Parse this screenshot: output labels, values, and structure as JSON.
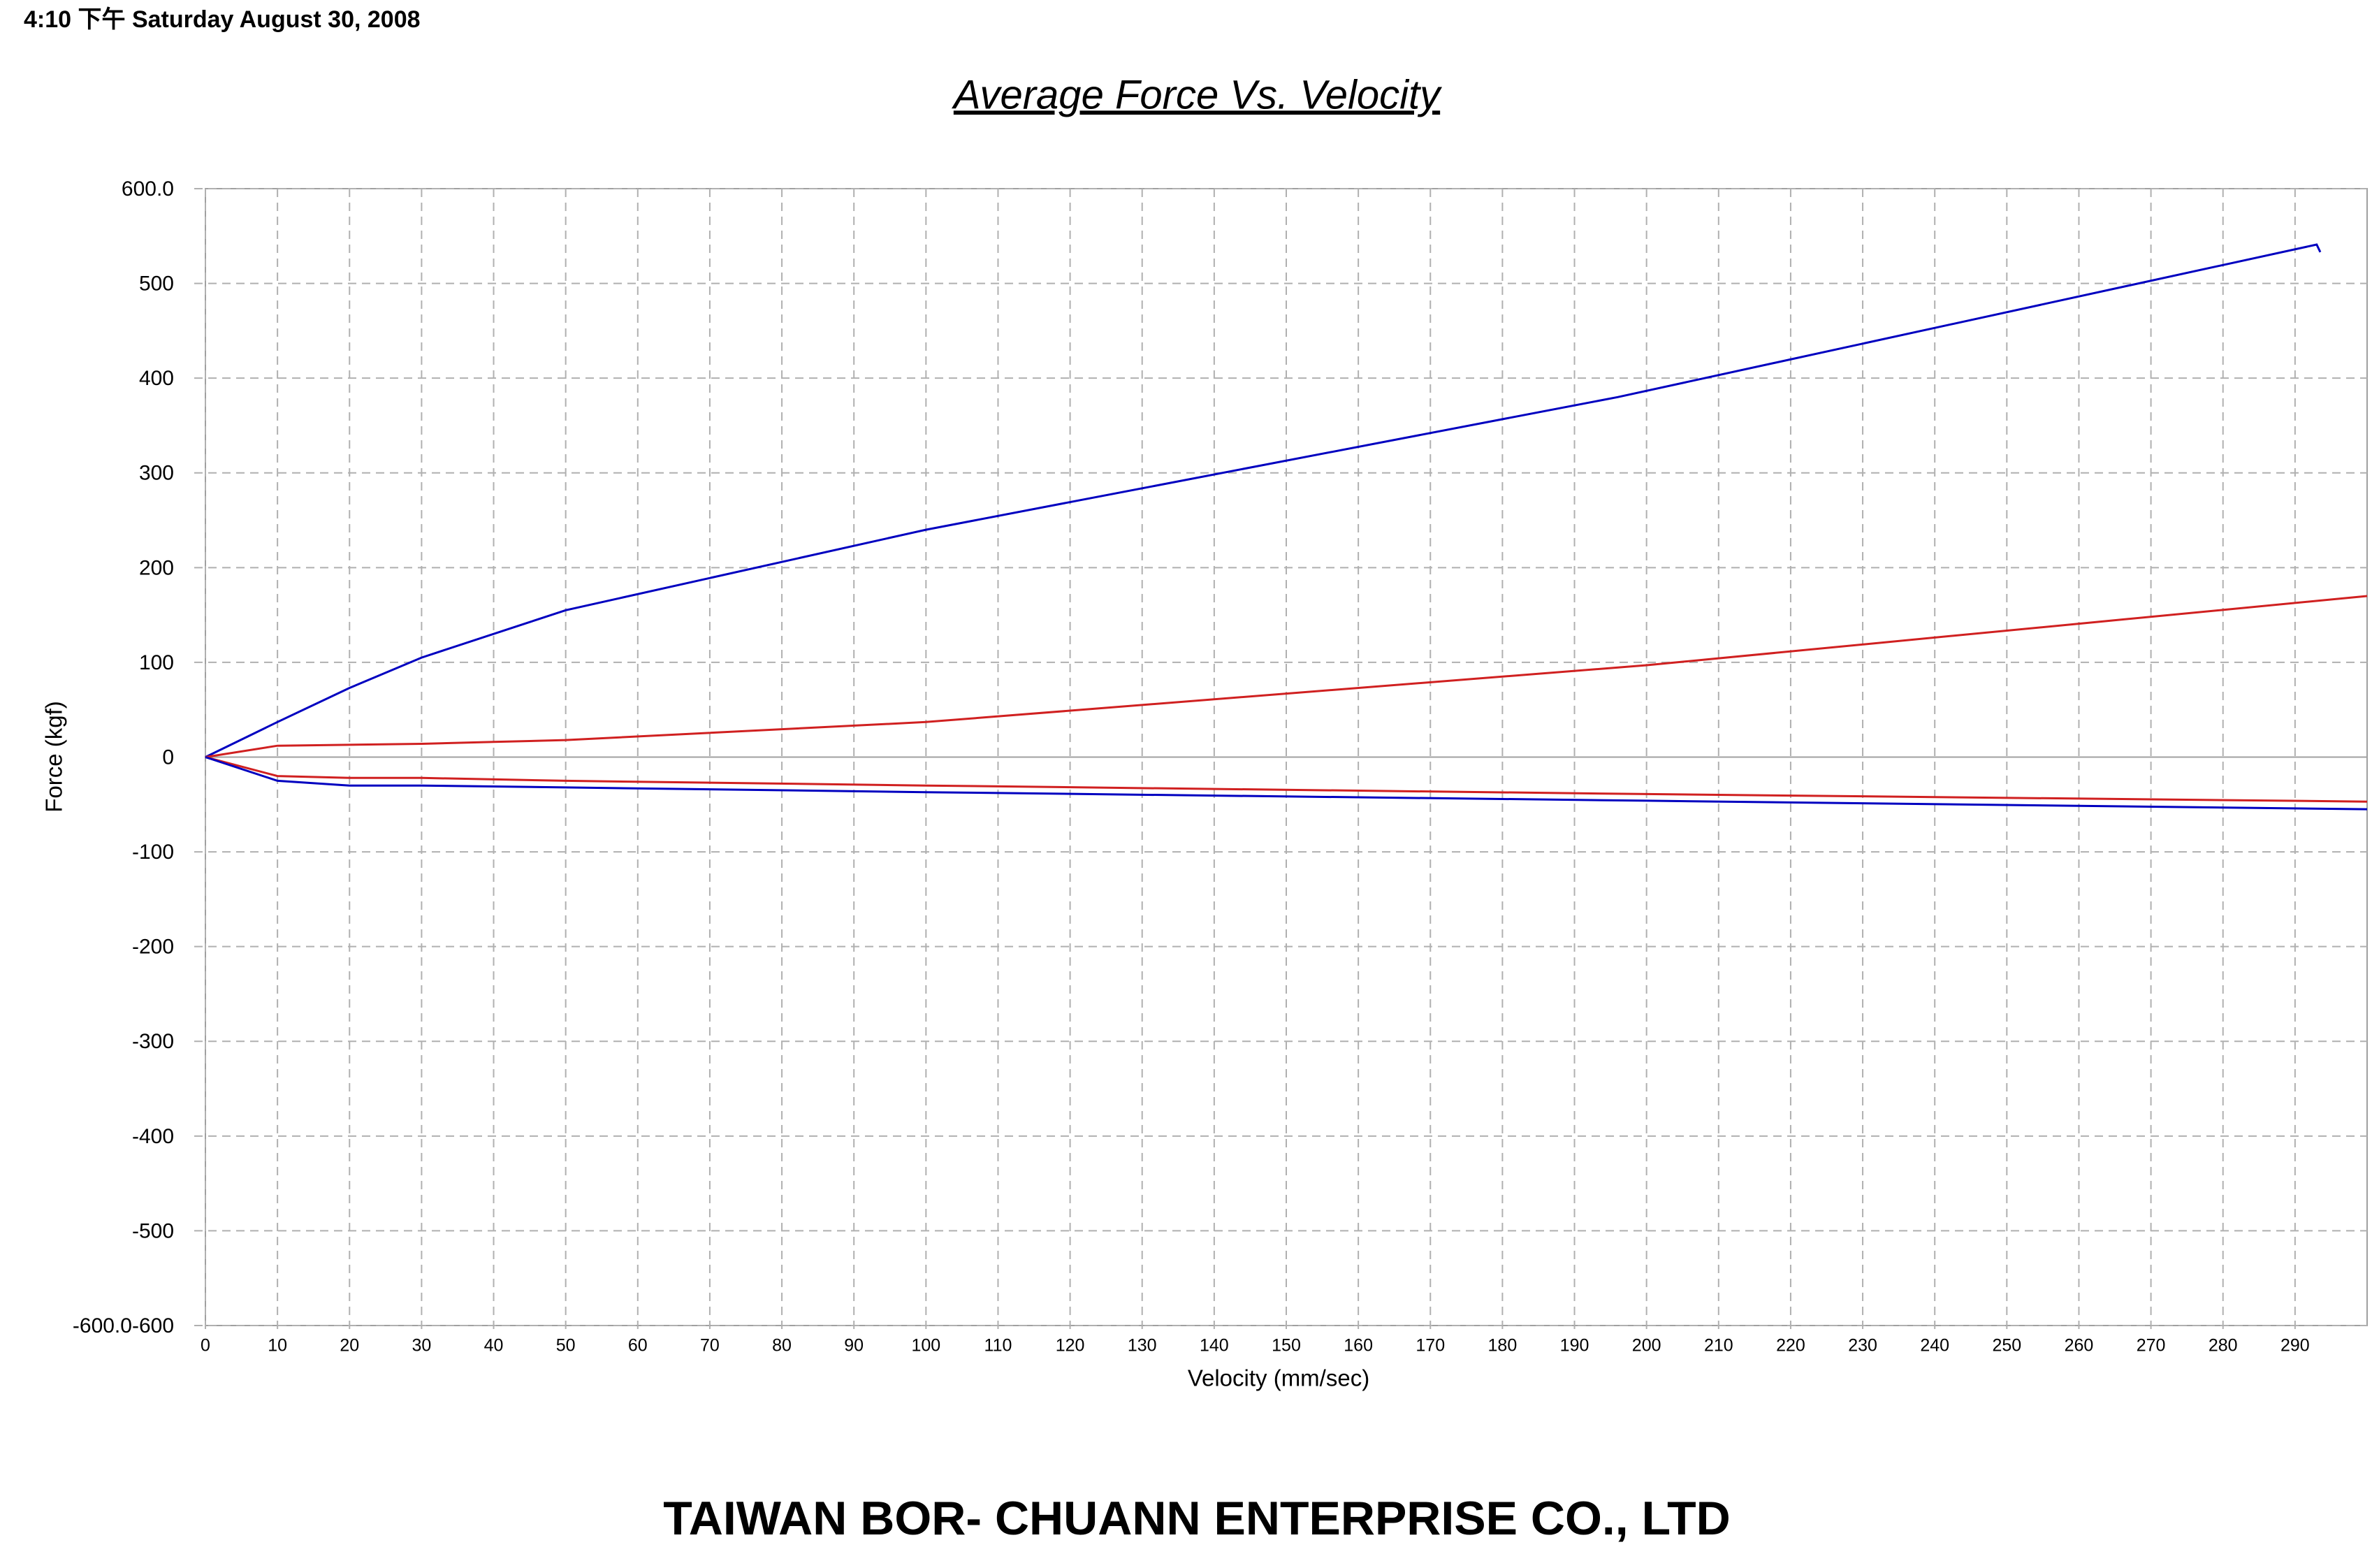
{
  "header": "4:10 下午 Saturday August 30, 2008",
  "footer": "TAIWAN BOR- CHUANN ENTERPRISE CO., LTD",
  "chart_data": {
    "type": "line",
    "title": "Average Force Vs. Velocity",
    "x_label": "Velocity (mm/sec)",
    "y_label": "Force (kgf)",
    "xlim": [
      0,
      300
    ],
    "xticks": [
      0,
      10,
      20,
      30,
      40,
      50,
      60,
      70,
      80,
      90,
      100,
      110,
      120,
      130,
      140,
      150,
      160,
      170,
      180,
      190,
      200,
      210,
      220,
      230,
      240,
      250,
      260,
      270,
      280,
      290
    ],
    "ylim": [
      -600,
      600
    ],
    "yticks": [
      {
        "value": -600,
        "label": "-600.0-600"
      },
      -500,
      -400,
      -300,
      -200,
      -100,
      0,
      100,
      200,
      300,
      400,
      500,
      {
        "value": 600,
        "label": "600.0"
      }
    ],
    "grid": true,
    "series": [
      {
        "color": "#0000c0",
        "x": [
          0,
          10,
          20,
          30,
          50,
          100,
          196,
          293,
          293.5
        ],
        "values": [
          0,
          37,
          73,
          105,
          155,
          240,
          380,
          541,
          533
        ]
      },
      {
        "color": "#d02020",
        "x": [
          0,
          10,
          20,
          30,
          40,
          50,
          100,
          200,
          300
        ],
        "values": [
          0,
          12,
          13,
          14,
          16,
          18,
          37,
          97,
          170
        ]
      },
      {
        "color": "#d02020",
        "x": [
          0,
          10,
          20,
          30,
          50,
          100,
          200,
          300
        ],
        "values": [
          0,
          -20,
          -22,
          -22,
          -25,
          -30,
          -39,
          -47
        ]
      },
      {
        "color": "#0000c0",
        "x": [
          0,
          10,
          20,
          30,
          50,
          100,
          200,
          300
        ],
        "values": [
          0,
          -25,
          -30,
          -30,
          -32,
          -37,
          -46,
          -55
        ]
      }
    ]
  }
}
